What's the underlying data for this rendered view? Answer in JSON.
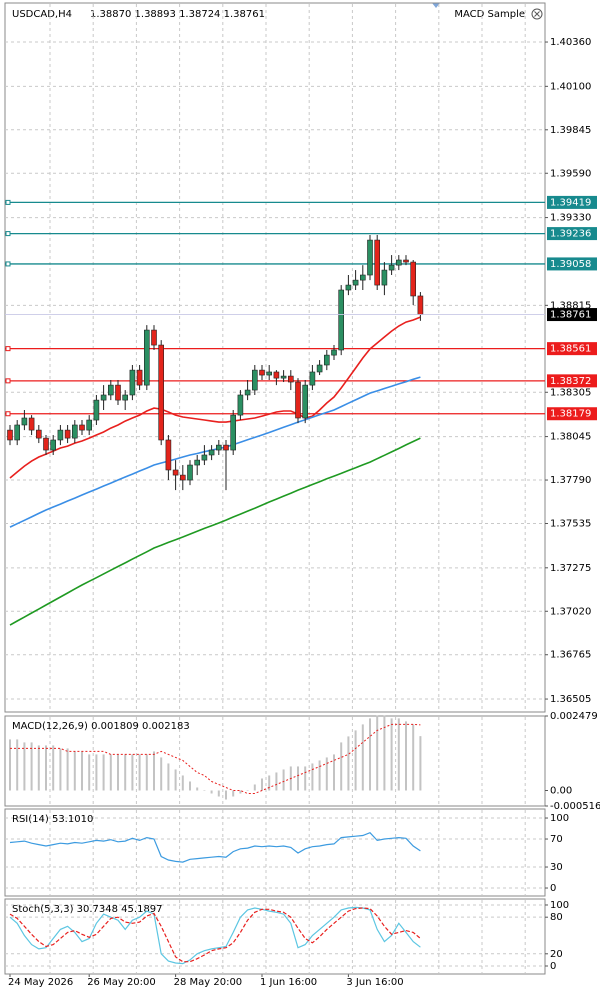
{
  "chart_data": [
    {
      "type": "candlestick",
      "title": "USDCAD,H4",
      "subtitle": "1.38870 1.38893 1.38724 1.38761",
      "expert": "MACD Sample",
      "x": [
        "24 May 2026",
        null,
        null,
        null,
        null,
        null,
        null,
        null,
        null,
        null,
        null,
        "26 May 20:00",
        null,
        null,
        null,
        null,
        null,
        null,
        null,
        null,
        null,
        null,
        null,
        "28 May 20:00",
        null,
        null,
        null,
        null,
        null,
        null,
        null,
        null,
        null,
        null,
        null,
        "1 Jun 16:00",
        null,
        null,
        null,
        null,
        null,
        null,
        null,
        null,
        null,
        null,
        null,
        "3 Jun 16:00",
        null,
        null,
        null,
        null,
        null,
        null,
        null,
        null,
        null,
        null
      ],
      "open": [
        1.38083,
        1.38025,
        1.38113,
        1.38154,
        1.38083,
        1.38036,
        1.37966,
        1.38025,
        1.38083,
        1.38036,
        1.38113,
        1.38083,
        1.38142,
        1.38259,
        1.38289,
        1.38347,
        1.38259,
        1.38289,
        1.38435,
        1.38347,
        1.3867,
        1.38582,
        1.38025,
        1.37849,
        1.37819,
        1.3779,
        1.37878,
        1.37907,
        1.37937,
        1.37966,
        1.37995,
        1.37966,
        1.38171,
        1.38289,
        1.38318,
        1.38435,
        1.38406,
        1.38424,
        1.38388,
        1.384,
        1.38365,
        1.38154,
        1.38347,
        1.38424,
        1.38465,
        1.38523,
        1.38553,
        1.38905,
        1.38934,
        1.38963,
        1.38993,
        1.39198,
        1.38934,
        1.39022,
        1.39051,
        1.39081,
        1.39069,
        1.3887
      ],
      "high": [
        1.38113,
        1.38142,
        1.38201,
        1.38171,
        1.38113,
        1.38054,
        1.38054,
        1.38113,
        1.38113,
        1.38142,
        1.38142,
        1.38171,
        1.38289,
        1.38347,
        1.38377,
        1.38377,
        1.38318,
        1.38465,
        1.38465,
        1.38699,
        1.38699,
        1.38611,
        1.38054,
        1.37907,
        1.37878,
        1.37907,
        1.37937,
        1.37995,
        1.37995,
        1.38025,
        1.38025,
        1.38201,
        1.38318,
        1.38377,
        1.38465,
        1.38465,
        1.38465,
        1.38435,
        1.38435,
        1.38435,
        1.38388,
        1.38377,
        1.38465,
        1.38494,
        1.38553,
        1.38582,
        1.38934,
        1.38993,
        1.39022,
        1.39051,
        1.39228,
        1.39228,
        1.39069,
        1.3911,
        1.3911,
        1.3911,
        1.39081,
        1.38893
      ],
      "low": [
        1.37995,
        1.37995,
        1.38083,
        1.38054,
        1.38007,
        1.37937,
        1.37937,
        1.37995,
        1.38007,
        1.38007,
        1.38054,
        1.38054,
        1.38113,
        1.38201,
        1.38259,
        1.3823,
        1.38201,
        1.38259,
        1.38318,
        1.38318,
        1.38553,
        1.37995,
        1.3779,
        1.37731,
        1.37731,
        1.3776,
        1.37819,
        1.37878,
        1.37907,
        1.37937,
        1.37731,
        1.37937,
        1.38142,
        1.38259,
        1.38289,
        1.38377,
        1.38377,
        1.38347,
        1.38365,
        1.38318,
        1.38124,
        1.38124,
        1.38318,
        1.38406,
        1.38435,
        1.38494,
        1.38523,
        1.38875,
        1.38905,
        1.38905,
        1.38963,
        1.38905,
        1.38875,
        1.38993,
        1.39022,
        1.39051,
        1.38817,
        1.38724
      ],
      "close": [
        1.38025,
        1.38113,
        1.38154,
        1.38083,
        1.38036,
        1.37966,
        1.38025,
        1.38083,
        1.38036,
        1.38113,
        1.38083,
        1.38142,
        1.38259,
        1.38289,
        1.38347,
        1.38259,
        1.38289,
        1.38435,
        1.38347,
        1.3867,
        1.38582,
        1.38025,
        1.37849,
        1.37819,
        1.3779,
        1.37878,
        1.37907,
        1.37937,
        1.37966,
        1.37995,
        1.37966,
        1.38171,
        1.38289,
        1.38318,
        1.38435,
        1.38406,
        1.38424,
        1.38388,
        1.384,
        1.38365,
        1.38154,
        1.38347,
        1.38424,
        1.38465,
        1.38523,
        1.38553,
        1.38905,
        1.38934,
        1.38963,
        1.38993,
        1.39198,
        1.38934,
        1.39022,
        1.39051,
        1.39081,
        1.39069,
        1.3887,
        1.38761
      ],
      "up_color": "#2b8f62",
      "down_color": "#e3241b",
      "series": [
        {
          "color": "#e8201e",
          "values": [
            1.37802,
            1.37837,
            1.37872,
            1.37901,
            1.37925,
            1.37942,
            1.3796,
            1.37978,
            1.37989,
            1.38007,
            1.38019,
            1.38036,
            1.38054,
            1.38072,
            1.38095,
            1.38113,
            1.38136,
            1.38154,
            1.38171,
            1.38195,
            1.38212,
            1.38206,
            1.38189,
            1.38171,
            1.3816,
            1.38154,
            1.38148,
            1.38142,
            1.38136,
            1.3813,
            1.3813,
            1.38136,
            1.38142,
            1.38148,
            1.38154,
            1.38165,
            1.38177,
            1.38189,
            1.38195,
            1.38195,
            1.38177,
            1.38154,
            1.38165,
            1.38201,
            1.38242,
            1.38277,
            1.3833,
            1.38388,
            1.38447,
            1.38506,
            1.38559,
            1.38594,
            1.38629,
            1.38664,
            1.38694,
            1.38717,
            1.38729,
            1.38746
          ]
        },
        {
          "color": "#3a8ee6",
          "values": [
            1.37514,
            1.37534,
            1.37554,
            1.37574,
            1.37594,
            1.37614,
            1.37632,
            1.37649,
            1.37667,
            1.37684,
            1.37702,
            1.3772,
            1.37737,
            1.37755,
            1.37772,
            1.3779,
            1.37808,
            1.37825,
            1.37843,
            1.3786,
            1.37878,
            1.3789,
            1.37901,
            1.37913,
            1.37925,
            1.37937,
            1.37946,
            1.37956,
            1.37965,
            1.37975,
            1.37984,
            1.37998,
            1.38012,
            1.38026,
            1.3804,
            1.38054,
            1.38069,
            1.38084,
            1.381,
            1.38115,
            1.3813,
            1.38144,
            1.38158,
            1.38173,
            1.38187,
            1.38201,
            1.38221,
            1.38241,
            1.3826,
            1.3828,
            1.383,
            1.38313,
            1.38327,
            1.3834,
            1.38354,
            1.38367,
            1.38381,
            1.38394
          ]
        },
        {
          "color": "#1f9a22",
          "values": [
            1.36939,
            1.36963,
            1.36986,
            1.3701,
            1.37033,
            1.37057,
            1.3708,
            1.37104,
            1.37127,
            1.37151,
            1.37174,
            1.37196,
            1.37217,
            1.37239,
            1.37261,
            1.37283,
            1.37304,
            1.37326,
            1.37348,
            1.37369,
            1.37391,
            1.37407,
            1.37424,
            1.3744,
            1.37456,
            1.37473,
            1.37489,
            1.37506,
            1.37522,
            1.37538,
            1.37555,
            1.37573,
            1.3759,
            1.37608,
            1.37625,
            1.37643,
            1.37661,
            1.37678,
            1.37696,
            1.37713,
            1.37731,
            1.37747,
            1.37764,
            1.3778,
            1.37797,
            1.37813,
            1.37829,
            1.37846,
            1.37862,
            1.37879,
            1.37895,
            1.37915,
            1.37935,
            1.37955,
            1.37975,
            1.37996,
            1.38016,
            1.38036
          ]
        }
      ],
      "ylim": [
        1.36429,
        1.40589
      ],
      "yticks": [
        {
          "value": 1.4036,
          "label": "1.40360"
        },
        {
          "value": 1.401,
          "label": "1.40100"
        },
        {
          "value": 1.39845,
          "label": "1.39845"
        },
        {
          "value": 1.3959,
          "label": "1.39590"
        },
        {
          "value": 1.3933,
          "label": "1.39330"
        },
        {
          "value": 1.38815,
          "label": "1.38815"
        },
        {
          "value": 1.38305,
          "label": "1.38305"
        },
        {
          "value": 1.38045,
          "label": "1.38045"
        },
        {
          "value": 1.3779,
          "label": "1.37790"
        },
        {
          "value": 1.37535,
          "label": "1.37535"
        },
        {
          "value": 1.37275,
          "label": "1.37275"
        },
        {
          "value": 1.3702,
          "label": "1.37020"
        },
        {
          "value": 1.36765,
          "label": "1.36765"
        },
        {
          "value": 1.36505,
          "label": "1.36505"
        }
      ],
      "grid": true,
      "levels": [
        {
          "value": 1.39419,
          "label": "1.39419",
          "color": "#178a8e"
        },
        {
          "value": 1.39236,
          "label": "1.39236",
          "color": "#178a8e"
        },
        {
          "value": 1.39058,
          "label": "1.39058",
          "color": "#178a8e"
        },
        {
          "value": 1.38561,
          "label": "1.38561",
          "color": "#ec1c1c"
        },
        {
          "value": 1.38372,
          "label": "1.38372",
          "color": "#ec1c1c"
        },
        {
          "value": 1.38179,
          "label": "1.38179",
          "color": "#ec1c1c"
        }
      ],
      "price_label": {
        "value": 1.38761,
        "label": "1.38761",
        "color": "#000000"
      }
    },
    {
      "type": "macd",
      "title": "MACD(12,26,9) 0.001809 0.002183",
      "series": [
        {
          "style": "bar",
          "color": "#c3c3c3",
          "values": [
            0.0017,
            0.0017,
            0.0016,
            0.0016,
            0.0015,
            0.0015,
            0.0015,
            0.0014,
            0.0014,
            0.0013,
            0.0013,
            0.0012,
            0.0012,
            0.0012,
            0.0012,
            0.0012,
            0.0012,
            0.0012,
            0.0012,
            0.0012,
            0.0013,
            0.0011,
            0.0009,
            0.0007,
            0.0005,
            0.0003,
            0.0001,
            0,
            -0.0001,
            -0.0002,
            -0.0003,
            -0.0002,
            -0.0001,
            0,
            0.0002,
            0.0004,
            0.0005,
            0.0006,
            0.0007,
            0.0008,
            0.0008,
            0.0008,
            0.0009,
            0.001,
            0.0011,
            0.0012,
            0.0016,
            0.0018,
            0.002,
            0.0022,
            0.0024,
            0.0025,
            0.0025,
            0.0024,
            0.0024,
            0.0023,
            0.0022,
            0.001809
          ]
        },
        {
          "style": "dotted",
          "color": "#e8201e",
          "values": [
            0.0014,
            0.0014,
            0.0014,
            0.0014,
            0.0014,
            0.0014,
            0.0014,
            0.0014,
            0.0013,
            0.0013,
            0.0013,
            0.0013,
            0.0013,
            0.0013,
            0.0012,
            0.0012,
            0.0012,
            0.0012,
            0.0012,
            0.0012,
            0.0012,
            0.0013,
            0.0012,
            0.0011,
            0.001,
            0.0008,
            0.0006,
            0.0005,
            0.0003,
            0.0002,
            0.0001,
            0,
            0,
            -0.0001,
            -0.0001,
            0,
            0.0001,
            0.0002,
            0.0003,
            0.0004,
            0.0005,
            0.0006,
            0.0007,
            0.0008,
            0.0009,
            0.001,
            0.0011,
            0.0012,
            0.0014,
            0.0016,
            0.0018,
            0.002,
            0.0021,
            0.0022,
            0.0022,
            0.0022,
            0.0022,
            0.002183
          ]
        }
      ],
      "ylim": [
        -0.000516,
        0.002479
      ],
      "yticks": [
        0.002479,
        {
          "value": 0,
          "label": "0.00"
        },
        -0.000516
      ],
      "grid": false
    },
    {
      "type": "line",
      "title": "RSI(14) 53.1010",
      "series": [
        {
          "style": "solid",
          "color": "#3c9be0",
          "values": [
            65,
            66,
            67,
            64,
            62,
            60,
            62,
            64,
            63,
            65,
            64,
            66,
            68,
            67,
            69,
            66,
            67,
            71,
            68,
            72,
            70,
            45,
            40,
            38,
            37,
            41,
            42,
            43,
            44,
            45,
            44,
            52,
            56,
            57,
            60,
            59,
            60,
            59,
            60,
            58,
            50,
            56,
            59,
            60,
            62,
            63,
            72,
            73,
            74,
            75,
            79,
            68,
            70,
            71,
            72,
            71,
            60,
            53.101
          ]
        }
      ],
      "ylim": [
        -11.4,
        112.9
      ],
      "yticks": [
        100,
        70,
        30,
        0
      ],
      "grid": true
    },
    {
      "type": "line",
      "title": "Stoch(5,3,3) 30.7348 45.1897",
      "series": [
        {
          "style": "solid",
          "color": "#5cc6e2",
          "values": [
            80,
            70,
            50,
            35,
            28,
            30,
            45,
            60,
            65,
            55,
            40,
            45,
            70,
            85,
            80,
            75,
            60,
            75,
            80,
            90,
            85,
            20,
            8,
            5,
            4,
            10,
            20,
            25,
            28,
            30,
            32,
            55,
            80,
            92,
            95,
            93,
            90,
            88,
            85,
            70,
            30,
            35,
            50,
            60,
            70,
            80,
            92,
            95,
            96,
            95,
            92,
            60,
            40,
            50,
            70,
            55,
            40,
            30.7348
          ]
        },
        {
          "style": "dashed",
          "color": "#e8201e",
          "values": [
            85,
            78,
            65,
            52,
            40,
            32,
            35,
            45,
            55,
            58,
            52,
            47,
            52,
            65,
            78,
            80,
            72,
            70,
            72,
            82,
            86,
            65,
            40,
            15,
            7,
            7,
            12,
            18,
            25,
            28,
            30,
            38,
            55,
            75,
            88,
            93,
            93,
            90,
            88,
            80,
            62,
            45,
            38,
            48,
            60,
            70,
            80,
            90,
            94,
            95,
            94,
            82,
            65,
            52,
            55,
            58,
            55,
            45.1897
          ]
        }
      ],
      "ylim": [
        -13.1,
        109.8
      ],
      "yticks": [
        100,
        80,
        20,
        0
      ],
      "grid": true
    }
  ]
}
